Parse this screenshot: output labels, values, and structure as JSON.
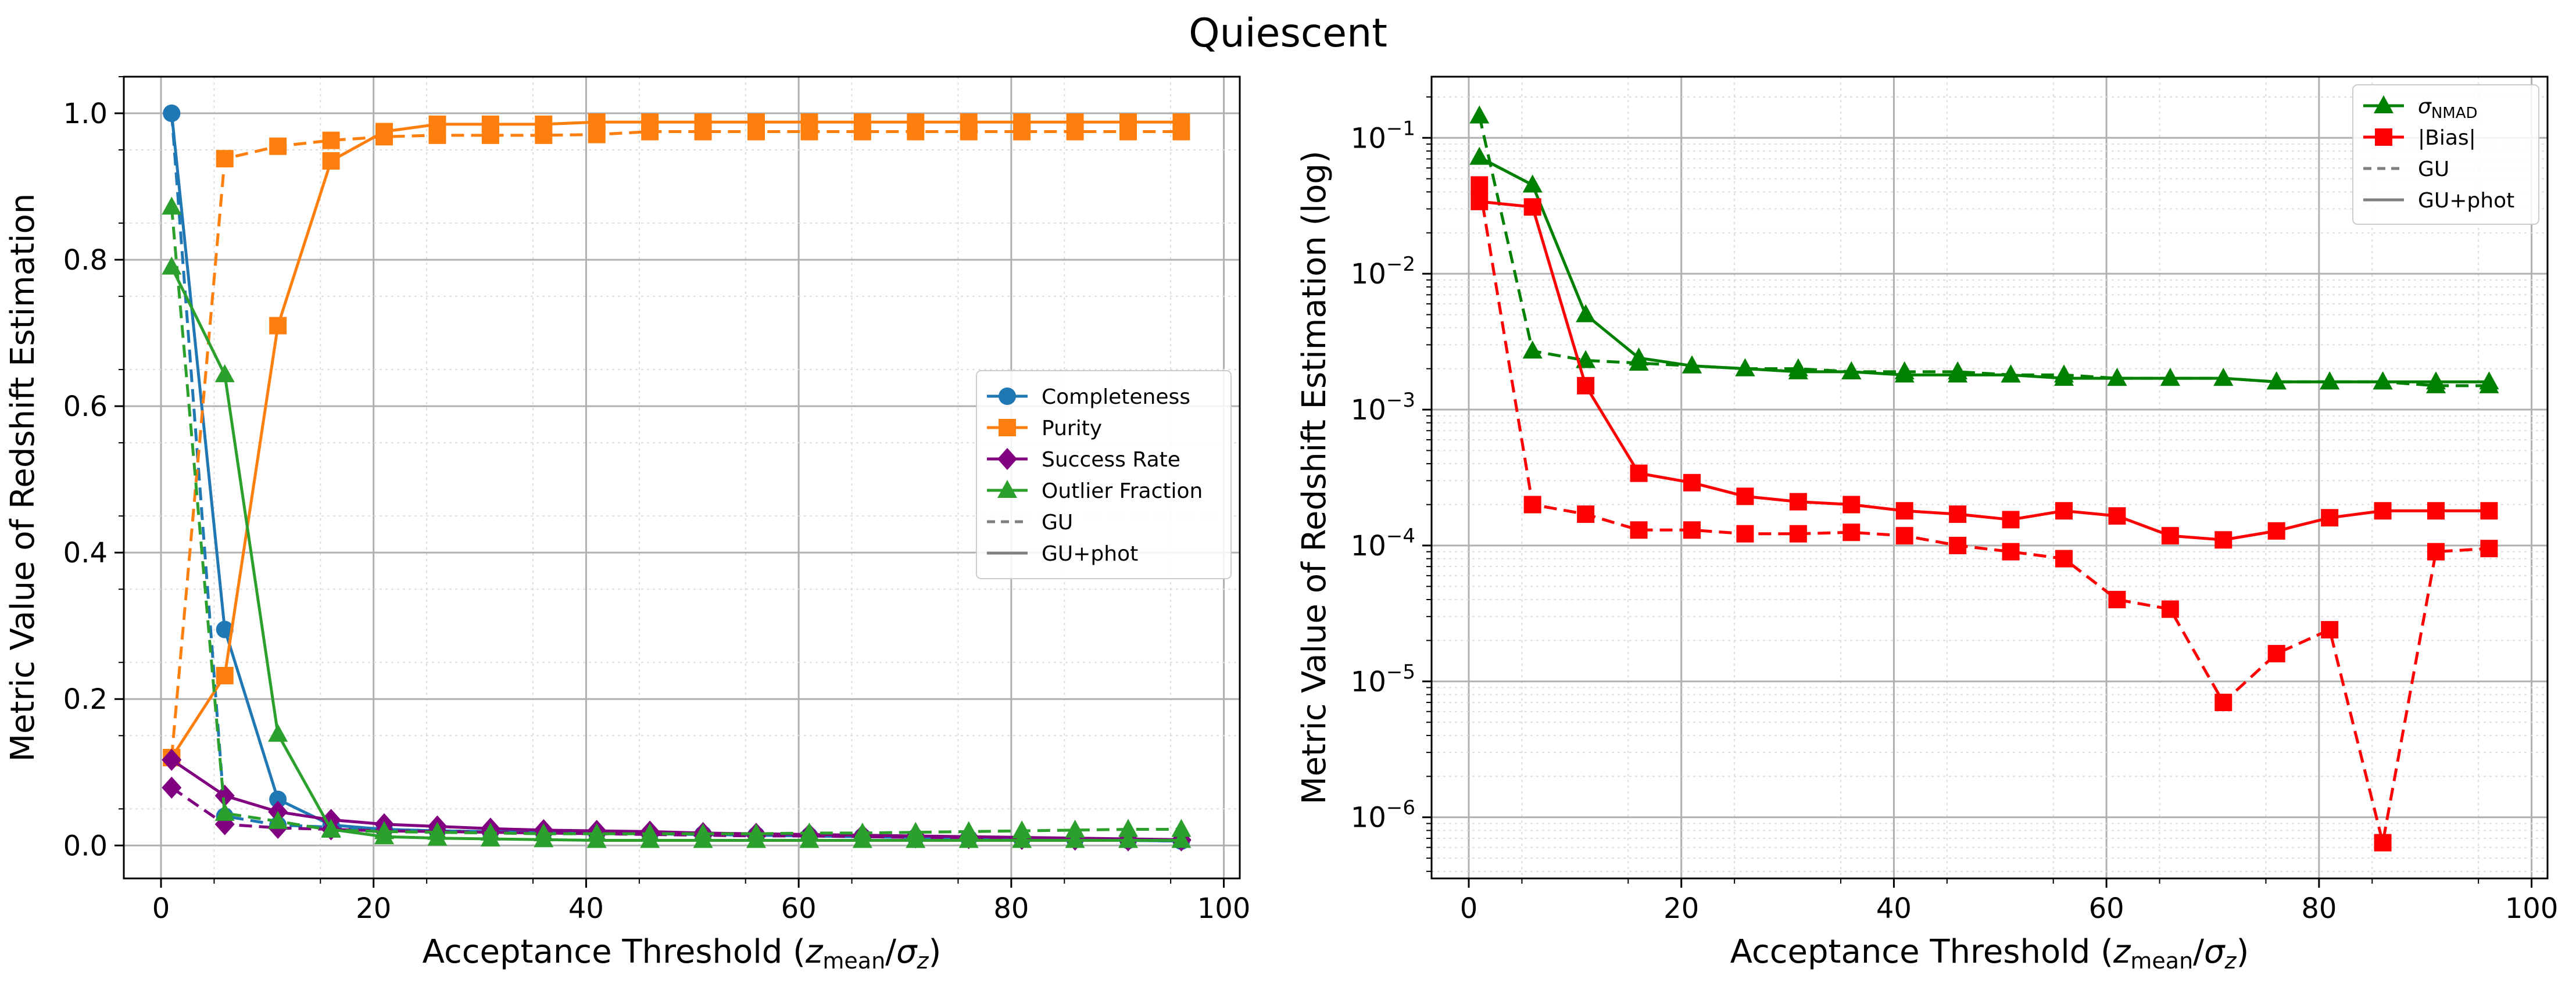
{
  "figure": {
    "title": "Quiescent"
  },
  "colors": {
    "blue": "#1f77b4",
    "orange": "#ff7f0e",
    "purple": "#800080",
    "green": "#2ca02c",
    "dkgreen": "#008000",
    "red": "#ff0000",
    "gray": "#808080"
  },
  "legend_style": {
    "GU": "dashed",
    "GU+phot": "solid"
  },
  "chart_data": [
    {
      "type": "line",
      "scale": "linear",
      "title": "",
      "xlabel_main": "Acceptance Threshold (",
      "xlabel_sub1": "mean",
      "xlabel_sub2": "z",
      "ylabel": "Metric Value of Redshift Estimation",
      "xlim": [
        -3.5,
        101.5
      ],
      "ylim": [
        -0.045,
        1.05
      ],
      "xticks": [
        0,
        20,
        40,
        60,
        80,
        100
      ],
      "yticks": [
        0.0,
        0.2,
        0.4,
        0.6,
        0.8,
        1.0
      ],
      "ytick_labels": [
        "0.0",
        "0.2",
        "0.4",
        "0.6",
        "0.8",
        "1.0"
      ],
      "xtick_labels": [
        "0",
        "20",
        "40",
        "60",
        "80",
        "100"
      ],
      "legend_position": "center-right",
      "x": [
        1,
        6,
        11,
        16,
        21,
        26,
        31,
        36,
        41,
        46,
        51,
        56,
        61,
        66,
        71,
        76,
        81,
        86,
        91,
        96
      ],
      "series": [
        {
          "name": "Completeness",
          "variant": "GU+phot",
          "color": "blue",
          "marker": "circle",
          "dash": "solid",
          "values": [
            1.0,
            0.295,
            0.063,
            0.028,
            0.022,
            0.02,
            0.019,
            0.018,
            0.017,
            0.016,
            0.015,
            0.014,
            0.013,
            0.012,
            0.011,
            0.01,
            0.009,
            0.008,
            0.007,
            0.006
          ]
        },
        {
          "name": "Completeness",
          "variant": "GU",
          "color": "blue",
          "marker": "circle",
          "dash": "dashed",
          "values": [
            1.0,
            0.04,
            0.028,
            0.025,
            0.022,
            0.02,
            0.019,
            0.018,
            0.017,
            0.016,
            0.015,
            0.014,
            0.013,
            0.012,
            0.011,
            0.01,
            0.009,
            0.008,
            0.007,
            0.006
          ]
        },
        {
          "name": "Purity",
          "variant": "GU+phot",
          "color": "orange",
          "marker": "square",
          "dash": "solid",
          "values": [
            0.12,
            0.232,
            0.71,
            0.935,
            0.975,
            0.985,
            0.985,
            0.985,
            0.988,
            0.988,
            0.988,
            0.988,
            0.988,
            0.988,
            0.988,
            0.988,
            0.988,
            0.988,
            0.988,
            0.988
          ]
        },
        {
          "name": "Purity",
          "variant": "GU",
          "color": "orange",
          "marker": "square",
          "dash": "dashed",
          "values": [
            0.12,
            0.938,
            0.955,
            0.963,
            0.968,
            0.97,
            0.97,
            0.97,
            0.971,
            0.975,
            0.975,
            0.975,
            0.975,
            0.975,
            0.975,
            0.975,
            0.975,
            0.975,
            0.975,
            0.975
          ]
        },
        {
          "name": "Success Rate",
          "variant": "GU+phot",
          "color": "purple",
          "marker": "diamond",
          "dash": "solid",
          "values": [
            0.117,
            0.068,
            0.046,
            0.035,
            0.029,
            0.026,
            0.023,
            0.021,
            0.02,
            0.019,
            0.017,
            0.016,
            0.015,
            0.014,
            0.013,
            0.012,
            0.011,
            0.01,
            0.009,
            0.008
          ]
        },
        {
          "name": "Success Rate",
          "variant": "GU",
          "color": "purple",
          "marker": "diamond",
          "dash": "dashed",
          "values": [
            0.079,
            0.029,
            0.024,
            0.022,
            0.02,
            0.019,
            0.018,
            0.017,
            0.016,
            0.015,
            0.014,
            0.013,
            0.013,
            0.012,
            0.011,
            0.01,
            0.009,
            0.008,
            0.007,
            0.007
          ]
        },
        {
          "name": "Outlier Fraction",
          "variant": "GU+phot",
          "color": "green",
          "marker": "triangle",
          "dash": "solid",
          "values": [
            0.79,
            0.643,
            0.152,
            0.022,
            0.012,
            0.01,
            0.009,
            0.008,
            0.007,
            0.007,
            0.007,
            0.007,
            0.007,
            0.007,
            0.007,
            0.007,
            0.007,
            0.007,
            0.007,
            0.007
          ]
        },
        {
          "name": "Outlier Fraction",
          "variant": "GU",
          "color": "green",
          "marker": "triangle",
          "dash": "dashed",
          "values": [
            0.872,
            0.044,
            0.033,
            0.021,
            0.019,
            0.018,
            0.017,
            0.016,
            0.016,
            0.016,
            0.016,
            0.016,
            0.017,
            0.017,
            0.018,
            0.019,
            0.02,
            0.021,
            0.022,
            0.022
          ]
        }
      ],
      "legend": [
        "Completeness",
        "Purity",
        "Success Rate",
        "Outlier Fraction",
        "GU",
        "GU+phot"
      ]
    },
    {
      "type": "line",
      "scale": "log",
      "title": "",
      "xlabel_main": "Acceptance Threshold (",
      "xlabel_sub1": "mean",
      "xlabel_sub2": "z",
      "ylabel": "Metric Value of Redshift Estimation (log)",
      "xlim": [
        -3.5,
        101.5
      ],
      "ylim_log10": [
        -6.45,
        -0.55
      ],
      "xticks": [
        0,
        20,
        40,
        60,
        80,
        100
      ],
      "xtick_labels": [
        "0",
        "20",
        "40",
        "60",
        "80",
        "100"
      ],
      "ytick_exponents": [
        -6,
        -5,
        -4,
        -3,
        -2,
        -1
      ],
      "ytick_base": "10",
      "ytick_labels": [
        "−6",
        "−5",
        "−4",
        "−3",
        "−2",
        "−1"
      ],
      "legend_position": "top-right",
      "x": [
        1,
        6,
        11,
        16,
        21,
        26,
        31,
        36,
        41,
        46,
        51,
        56,
        61,
        66,
        71,
        76,
        81,
        86,
        91,
        96
      ],
      "series": [
        {
          "name": "σNMAD",
          "variant": "GU+phot",
          "color": "dkgreen",
          "marker": "triangle",
          "dash": "solid",
          "values": [
            0.072,
            0.045,
            0.005,
            0.0024,
            0.0021,
            0.002,
            0.0019,
            0.0019,
            0.0018,
            0.0018,
            0.0018,
            0.0017,
            0.0017,
            0.0017,
            0.0017,
            0.0016,
            0.0016,
            0.0016,
            0.0016,
            0.0016
          ]
        },
        {
          "name": "σNMAD",
          "variant": "GU",
          "color": "dkgreen",
          "marker": "triangle",
          "dash": "dashed",
          "values": [
            0.145,
            0.0027,
            0.0023,
            0.0022,
            0.0021,
            0.002,
            0.002,
            0.0019,
            0.0019,
            0.0019,
            0.0018,
            0.0018,
            0.0017,
            0.0017,
            0.0017,
            0.0016,
            0.0016,
            0.0016,
            0.0015,
            0.0015
          ]
        },
        {
          "name": "|Bias|",
          "variant": "GU+phot",
          "color": "red",
          "marker": "square",
          "dash": "solid",
          "values": [
            0.034,
            0.031,
            0.0015,
            0.00034,
            0.00029,
            0.00023,
            0.00021,
            0.0002,
            0.00018,
            0.00017,
            0.000155,
            0.00018,
            0.000165,
            0.000118,
            0.00011,
            0.000128,
            0.00016,
            0.00018,
            0.00018,
            0.00018
          ]
        },
        {
          "name": "|Bias|",
          "variant": "GU",
          "color": "red",
          "marker": "square",
          "dash": "dashed",
          "values": [
            0.045,
            0.0002,
            0.00017,
            0.00013,
            0.00013,
            0.000122,
            0.000122,
            0.000125,
            0.000118,
            0.0001,
            9e-05,
            8e-05,
            4e-05,
            3.4e-05,
            7e-06,
            1.6e-05,
            2.4e-05,
            6.5e-07,
            9e-05,
            9.5e-05
          ]
        }
      ],
      "legend": [
        "σ",
        "NMAD",
        "|Bias|",
        "GU",
        "GU+phot"
      ]
    }
  ]
}
